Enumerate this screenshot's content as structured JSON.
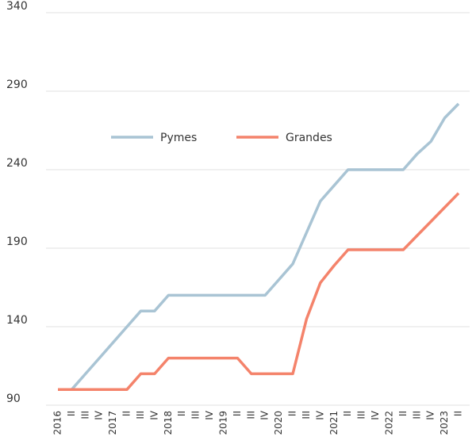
{
  "chart_data": {
    "type": "line",
    "categories": [
      "2016",
      "II",
      "III",
      "IV",
      "2017",
      "II",
      "III",
      "IV",
      "2018",
      "II",
      "III",
      "IV",
      "2019",
      "II",
      "III",
      "IV",
      "2020",
      "II",
      "III",
      "IV",
      "2021",
      "II",
      "III",
      "IV",
      "2022",
      "II",
      "III",
      "IV",
      "2023",
      "II"
    ],
    "series": [
      {
        "name": "Pymes",
        "color": "#a9c4d4",
        "values": [
          100,
          100,
          110,
          120,
          130,
          140,
          150,
          150,
          160,
          160,
          160,
          160,
          160,
          160,
          160,
          160,
          170,
          180,
          200,
          220,
          230,
          240,
          240,
          240,
          240,
          240,
          250,
          258,
          273,
          282
        ]
      },
      {
        "name": "Grandes",
        "color": "#f4836b",
        "values": [
          100,
          100,
          100,
          100,
          100,
          100,
          110,
          110,
          120,
          120,
          120,
          120,
          120,
          120,
          110,
          110,
          110,
          110,
          145,
          168,
          179,
          189,
          189,
          189,
          189,
          189,
          198,
          207,
          216,
          225
        ]
      }
    ],
    "ylim": [
      90,
      340
    ],
    "yticks": [
      90,
      140,
      190,
      240,
      290,
      340
    ],
    "grid": true,
    "legend": "top"
  }
}
